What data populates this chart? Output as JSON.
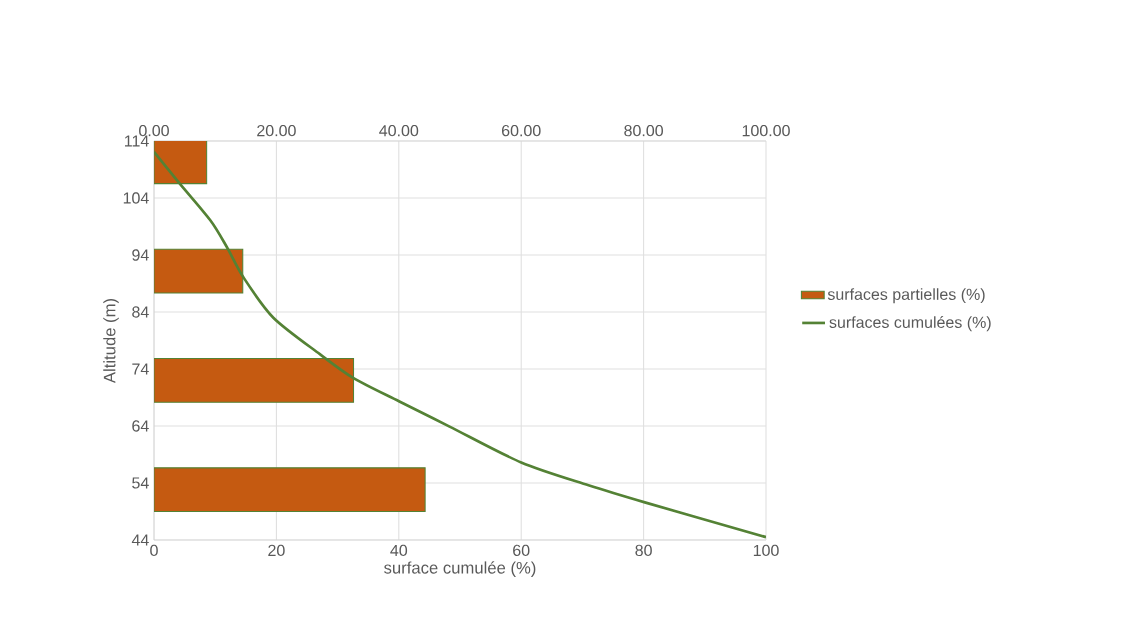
{
  "chart_data": [
    {
      "type": "bar",
      "orientation": "horizontal",
      "categories": [
        null,
        null,
        null,
        null
      ],
      "xlim": [
        0,
        100
      ],
      "xticks": [
        {
          "value": 0,
          "label": "0.00"
        },
        {
          "value": 20,
          "label": "20.00"
        },
        {
          "value": 40,
          "label": "40.00"
        },
        {
          "value": 60,
          "label": "60.00"
        },
        {
          "value": 80,
          "label": "80.00"
        },
        {
          "value": 100,
          "label": "100.00"
        }
      ],
      "tick_labels": "x",
      "legend": "right",
      "series": [
        {
          "name": "surfaces partielles (%)",
          "color": "#c55a11",
          "values": [
            8.6,
            14.5,
            32.6,
            44.3
          ]
        }
      ]
    },
    {
      "type": "line",
      "xlabel": "surface cumulée (%)",
      "ylabel": "Altitude (m)",
      "xlim": [
        0,
        100
      ],
      "xticks": [
        0,
        20,
        40,
        60,
        80,
        100
      ],
      "ylim": [
        44,
        114
      ],
      "yticks": [
        44,
        54,
        64,
        74,
        84,
        94,
        104,
        114
      ],
      "grid": true,
      "legend": "right",
      "x": [
        0,
        4,
        9.2,
        11.9,
        14.6,
        19.5,
        27.1,
        32.6,
        40.1,
        48.3,
        60,
        71,
        80.2,
        100
      ],
      "series": [
        {
          "name": "surfaces cumulées (%)",
          "color": "#548235",
          "values": [
            112.1,
            106.8,
            100.1,
            95.4,
            90.1,
            83,
            76.6,
            72.4,
            68.3,
            63.9,
            57.6,
            53.6,
            50.6,
            44.5
          ]
        }
      ]
    }
  ]
}
